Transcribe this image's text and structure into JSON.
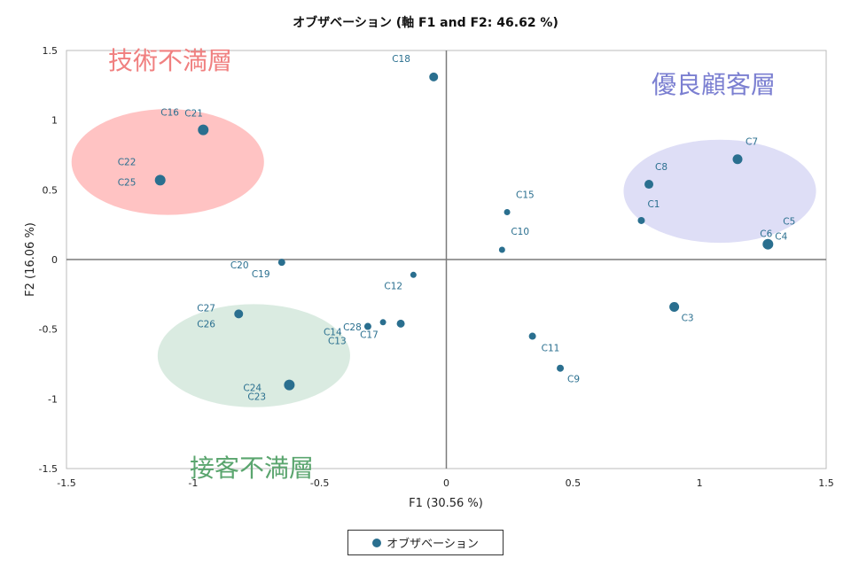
{
  "chart_data": {
    "type": "scatter",
    "title": "オブザベーション (軸 F1 and F2: 46.62 %)",
    "xlabel": "F1 (30.56 %)",
    "ylabel": "F2 (16.06 %)",
    "xlim": [
      -1.5,
      1.5
    ],
    "ylim": [
      -1.5,
      1.5
    ],
    "x_ticks": [
      "-1.5",
      "-1",
      "-0.5",
      "0",
      "0.5",
      "1",
      "1.5"
    ],
    "y_ticks": [
      "1.5",
      "1",
      "0.5",
      "0",
      "-0.5",
      "-1",
      "-1.5"
    ],
    "grid": false,
    "legend_position": "bottom",
    "series": [
      {
        "name": "オブザベーション",
        "color": "#2a6f8f",
        "points": [
          {
            "labels": [
              "C18"
            ],
            "x": -0.05,
            "y": 1.31
          },
          {
            "labels": [
              "C16",
              "C21"
            ],
            "x": -0.96,
            "y": 0.93
          },
          {
            "labels": [
              "C22",
              "C25"
            ],
            "x": -1.13,
            "y": 0.57
          },
          {
            "labels": [
              "C20",
              "C19"
            ],
            "x": -0.65,
            "y": -0.02
          },
          {
            "labels": [
              "C27",
              "C26"
            ],
            "x": -0.82,
            "y": -0.39
          },
          {
            "labels": [
              "C24",
              "C23"
            ],
            "x": -0.62,
            "y": -0.9
          },
          {
            "labels": [
              "C12"
            ],
            "x": -0.13,
            "y": -0.11
          },
          {
            "labels": [
              "C14",
              "C13"
            ],
            "x": -0.31,
            "y": -0.48
          },
          {
            "labels": [
              "C28"
            ],
            "x": -0.25,
            "y": -0.45
          },
          {
            "labels": [
              "C17"
            ],
            "x": -0.18,
            "y": -0.46
          },
          {
            "labels": [
              "C15"
            ],
            "x": 0.24,
            "y": 0.34
          },
          {
            "labels": [
              "C10"
            ],
            "x": 0.22,
            "y": 0.07
          },
          {
            "labels": [
              "C8"
            ],
            "x": 0.8,
            "y": 0.54
          },
          {
            "labels": [
              "C1"
            ],
            "x": 0.77,
            "y": 0.28
          },
          {
            "labels": [
              "C7"
            ],
            "x": 1.15,
            "y": 0.72
          },
          {
            "labels": [
              "C5",
              "C6",
              "C4"
            ],
            "x": 1.27,
            "y": 0.11
          },
          {
            "labels": [
              "C3"
            ],
            "x": 0.9,
            "y": -0.34
          },
          {
            "labels": [
              "C11"
            ],
            "x": 0.34,
            "y": -0.55
          },
          {
            "labels": [
              "C9"
            ],
            "x": 0.45,
            "y": -0.78
          }
        ]
      }
    ],
    "annotations": [
      {
        "text": "技術不満層",
        "color": "#f08080",
        "fill": "#ffb8b8",
        "cx": -1.1,
        "cy": 0.7,
        "rx": 0.38,
        "ry": 0.38
      },
      {
        "text": "優良顧客層",
        "color": "#7b7fd1",
        "fill": "#d8d8f4",
        "cx": 1.08,
        "cy": 0.49,
        "rx": 0.38,
        "ry": 0.37
      },
      {
        "text": "接客不満層",
        "color": "#5aa56e",
        "fill": "#d4e8dc",
        "cx": -0.76,
        "cy": -0.69,
        "rx": 0.38,
        "ry": 0.37
      }
    ]
  }
}
